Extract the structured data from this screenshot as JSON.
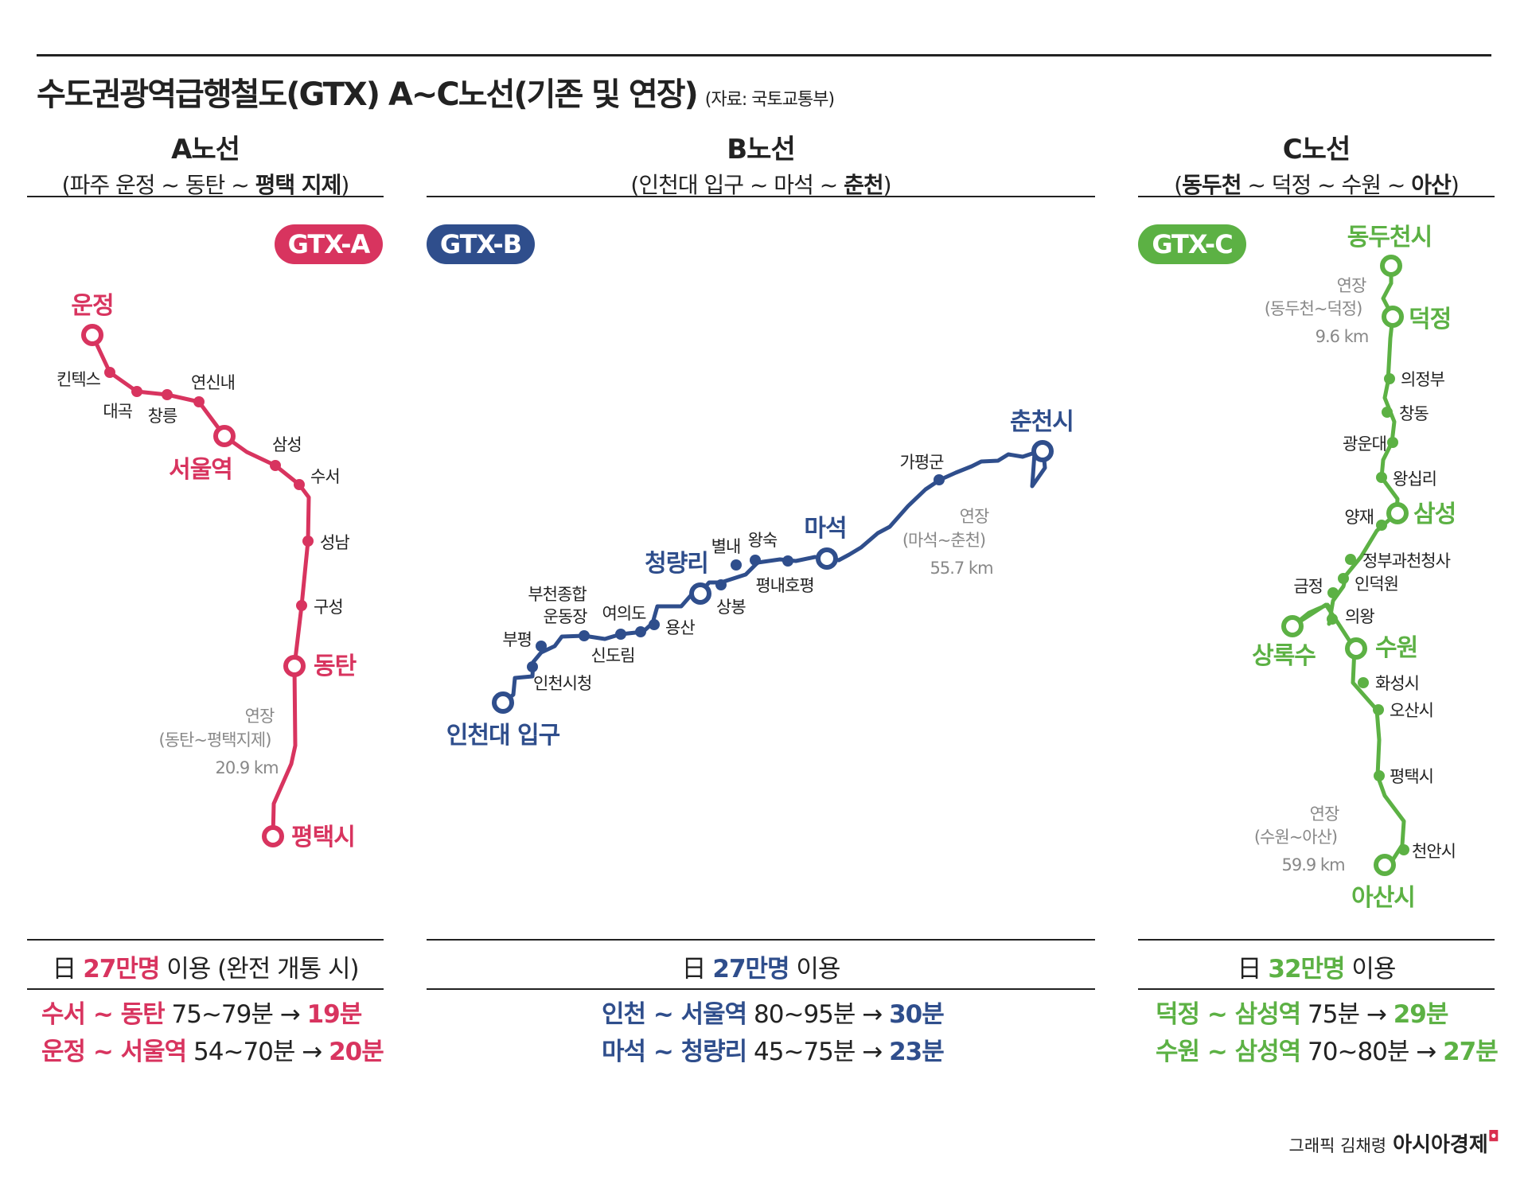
{
  "header": {
    "title": "수도권광역급행철도(GTX) A~C노선(기존 및 연장)",
    "source": "(자료: 국토교통부)"
  },
  "colors": {
    "a": "#d8345f",
    "b": "#2f4e8c",
    "c": "#5cb144",
    "gray": "#888888"
  },
  "columns": {
    "a": {
      "title": "A노선",
      "sub_prefix": "(파주 운정 ~ 동탄 ~ ",
      "sub_bold": "평택 지제",
      "sub_suffix": ")",
      "badge": "GTX-A",
      "stations": {
        "s1": "운정",
        "s2": "킨텍스",
        "s3": "대곡",
        "s4": "창릉",
        "s5": "연신내",
        "s6": "서울역",
        "s7": "삼성",
        "s8": "수서",
        "s9": "성남",
        "s10": "구성",
        "s11": "동탄",
        "s12": "평택시"
      },
      "ext": {
        "label": "연장",
        "range": "(동탄~평택지제)",
        "dist": "20.9 km"
      },
      "stat_prefix": "日 ",
      "stat_num": "27만명",
      "stat_suffix": " 이용 (완전 개통 시)",
      "times": [
        {
          "route": "수서 ~ 동탄",
          "before": " 75~79분 → ",
          "after": "19분"
        },
        {
          "route": "운정 ~ 서울역",
          "before": " 54~70분 → ",
          "after": "20분"
        }
      ]
    },
    "b": {
      "title": "B노선",
      "sub_prefix": "(인천대 입구 ~ 마석 ~ ",
      "sub_bold": "춘천",
      "sub_suffix": ")",
      "badge": "GTX-B",
      "stations": {
        "s1": "인천대 입구",
        "s2": "인천시청",
        "s3": "부평",
        "s4": "부천종합",
        "s5": "운동장",
        "s6": "신도림",
        "s7": "여의도",
        "s8": "용산",
        "s9": "청량리",
        "s10": "상봉",
        "s11": "별내",
        "s12": "왕숙",
        "s13": "평내호평",
        "s14": "마석",
        "s15": "가평군",
        "s16": "춘천시"
      },
      "ext": {
        "label": "연장",
        "range": "(마석~춘천)",
        "dist": "55.7 km"
      },
      "stat_prefix": "日 ",
      "stat_num": "27만명",
      "stat_suffix": " 이용",
      "times": [
        {
          "route": "인천 ~ 서울역",
          "before": " 80~95분 → ",
          "after": "30분"
        },
        {
          "route": "마석 ~ 청량리",
          "before": " 45~75분 → ",
          "after": "23분"
        }
      ]
    },
    "c": {
      "title": "C노선",
      "sub_prefix": "(",
      "sub_bold": "동두천",
      "sub_mid": " ~ 덕정 ~ 수원 ~ ",
      "sub_bold2": "아산",
      "sub_suffix": ")",
      "badge": "GTX-C",
      "stations": {
        "s1": "동두천시",
        "s2": "덕정",
        "s3": "의정부",
        "s4": "창동",
        "s5": "광운대",
        "s6": "왕십리",
        "s7": "양재",
        "s8": "삼성",
        "s9": "정부과천청사",
        "s10": "인덕원",
        "s11": "금정",
        "s12": "의왕",
        "s13": "상록수",
        "s14": "수원",
        "s15": "화성시",
        "s16": "오산시",
        "s17": "평택시",
        "s18": "천안시",
        "s19": "아산시"
      },
      "ext1": {
        "label": "연장",
        "range": "(동두천~덕정)",
        "dist": "9.6 km"
      },
      "ext2": {
        "label": "연장",
        "range": "(수원~아산)",
        "dist": "59.9 km"
      },
      "stat_prefix": "日 ",
      "stat_num": "32만명",
      "stat_suffix": " 이용",
      "times": [
        {
          "route": "덕정 ~ 삼성역",
          "before": " 75분 → ",
          "after": "29분"
        },
        {
          "route": "수원 ~ 삼성역",
          "before": " 70~80분 → ",
          "after": "27분"
        }
      ]
    }
  },
  "credit": {
    "prefix": "그래픽 김채령",
    "brand": "아시아경제",
    "mark": "◘"
  }
}
